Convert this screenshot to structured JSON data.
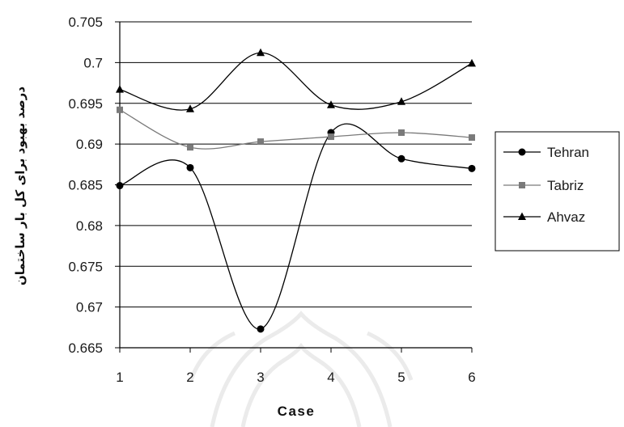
{
  "chart_data": {
    "type": "line",
    "smooth": true,
    "xlabel": "Case",
    "ylabel": "درصد بهبود برای کل بار ساختمان",
    "xlim": [
      1,
      6
    ],
    "ylim": [
      0.665,
      0.705
    ],
    "grid": true,
    "legend": "right",
    "x": [
      1,
      2,
      3,
      4,
      5,
      6
    ],
    "xticks": [
      {
        "value": 1,
        "label": "1"
      },
      {
        "value": 2,
        "label": "2"
      },
      {
        "value": 3,
        "label": "3"
      },
      {
        "value": 4,
        "label": "4"
      },
      {
        "value": 5,
        "label": "5"
      },
      {
        "value": 6,
        "label": "6"
      }
    ],
    "yticks": [
      {
        "value": 0.705,
        "label": "0.705"
      },
      {
        "value": 0.7,
        "label": "0.7"
      },
      {
        "value": 0.695,
        "label": "0.695"
      },
      {
        "value": 0.69,
        "label": "0.69"
      },
      {
        "value": 0.685,
        "label": "0.685"
      },
      {
        "value": 0.68,
        "label": "0.68"
      },
      {
        "value": 0.675,
        "label": "0.675"
      },
      {
        "value": 0.67,
        "label": "0.67"
      },
      {
        "value": 0.665,
        "label": "0.665"
      }
    ],
    "series": [
      {
        "name": "Tehran",
        "marker": "circle",
        "color": "#000000",
        "values": [
          0.6849,
          0.6871,
          0.6673,
          0.6914,
          0.6882,
          0.687
        ]
      },
      {
        "name": "Tabriz",
        "marker": "square",
        "color": "#7a7a7a",
        "values": [
          0.6942,
          0.6896,
          0.6903,
          0.6909,
          0.6914,
          0.6908
        ]
      },
      {
        "name": "Ahvaz",
        "marker": "triangle",
        "color": "#000000",
        "values": [
          0.6967,
          0.6943,
          0.7012,
          0.6948,
          0.6952,
          0.6999
        ]
      }
    ]
  }
}
